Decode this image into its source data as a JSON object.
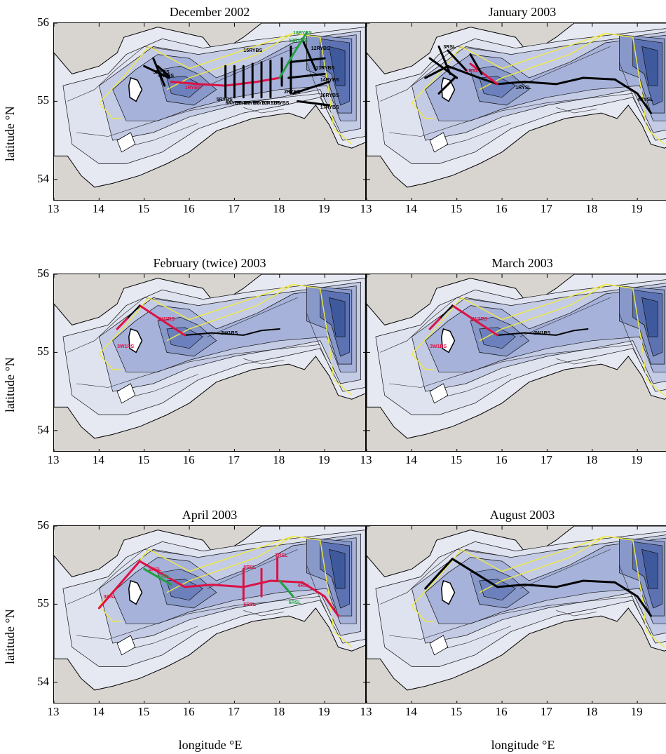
{
  "axes": {
    "xlabel": "longitude °E",
    "ylabel": "latitude °N",
    "x_ticks": [
      "13",
      "14",
      "15",
      "16",
      "17",
      "18",
      "19"
    ],
    "y_ticks": [
      "54",
      "55",
      "56"
    ]
  },
  "panels": [
    {
      "title": "December 2002",
      "labels": [
        "15RYBS",
        "12RYBS",
        "13RYBS",
        "14RYBS",
        "16RYBS",
        "17RYBS",
        "5RYBS",
        "6RYBS",
        "7RYBS",
        "8RYBS",
        "9RYBS",
        "10RYBS",
        "11RYBS",
        "1RYBS",
        "2RYBS",
        "3RYBS",
        "4RYBS",
        "18RYBS",
        "19RYBS"
      ]
    },
    {
      "title": "January 2003",
      "labels": [
        "3RSL",
        "2RSL",
        "1RYSL",
        "4RYSL"
      ]
    },
    {
      "title": "February (twice) 2003",
      "labels": [
        "2W1RS",
        "2W2RS",
        "3W1RS"
      ]
    },
    {
      "title": "March 2003",
      "labels": [
        "2W1RS",
        "2W2RS",
        "3W1RS"
      ]
    },
    {
      "title": "April 2003",
      "labels": [
        "3RSL",
        "2RSL",
        "1RSL",
        "5RSL",
        "7RSL",
        "4RSL",
        "6RSL",
        "8RSL"
      ]
    },
    {
      "title": "August 2003",
      "labels": []
    }
  ],
  "colors": {
    "land": "#d8d5d0",
    "shallow": "#e6e8f2",
    "deep": "#3f5a9c",
    "track_black": "#000000",
    "track_red": "#dd1144",
    "track_green": "#22a040",
    "boundary": "#f0ea40"
  }
}
